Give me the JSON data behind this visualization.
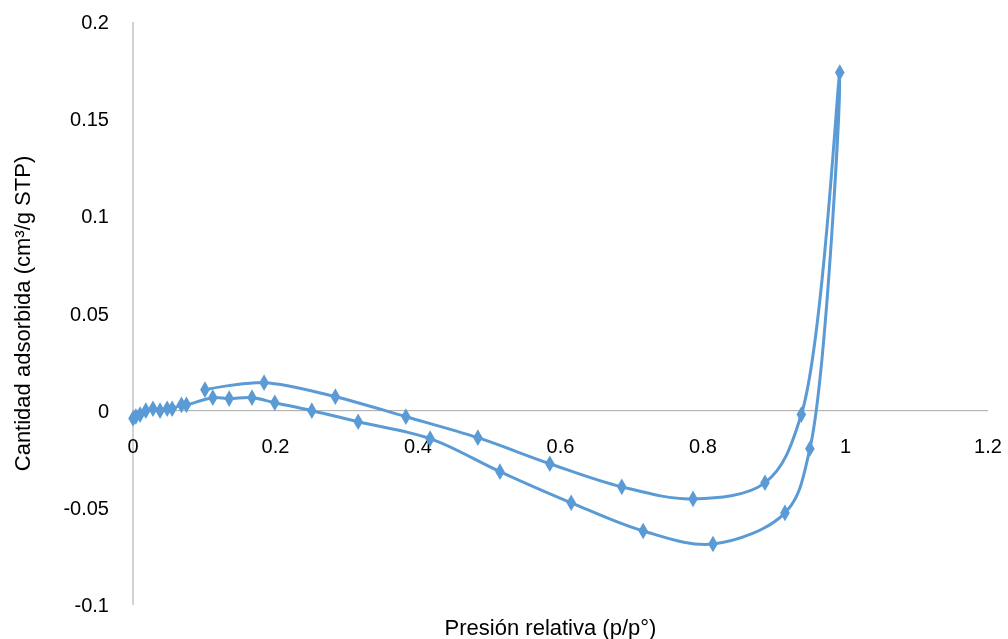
{
  "chart_data": {
    "type": "line",
    "xlabel": "Presión relativa (p/p°)",
    "ylabel": "Cantidad adsorbida (cm³/g STP)",
    "xlim": [
      0,
      1.2
    ],
    "ylim": [
      -0.1,
      0.2
    ],
    "xticks": [
      0,
      0.2,
      0.4,
      0.6,
      0.8,
      1,
      1.2
    ],
    "yticks": [
      -0.1,
      -0.05,
      0,
      0.05,
      0.1,
      0.15,
      0.2
    ],
    "grid": false,
    "marker": "diamond",
    "line_style": "solid",
    "series": [
      {
        "color": "#5b9bd5",
        "x": [
          0.0,
          0.004,
          0.01,
          0.018,
          0.028,
          0.038,
          0.048,
          0.055,
          0.068,
          0.075,
          0.112,
          0.135,
          0.167,
          0.199,
          0.251,
          0.316,
          0.417,
          0.515,
          0.615,
          0.716,
          0.814,
          0.915,
          0.95,
          0.992,
          0.938,
          0.887,
          0.786,
          0.686,
          0.585,
          0.484,
          0.383,
          0.284,
          0.184,
          0.101
        ],
        "values": [
          -0.004,
          -0.003,
          -0.002,
          0.0,
          0.001,
          0.0,
          0.001,
          0.001,
          0.003,
          0.003,
          0.0067,
          0.0062,
          0.0067,
          0.0041,
          0.0,
          -0.0057,
          -0.0144,
          -0.0314,
          -0.0474,
          -0.0619,
          -0.0686,
          -0.0526,
          -0.0196,
          0.174,
          -0.002,
          -0.0371,
          -0.0454,
          -0.0392,
          -0.0273,
          -0.0139,
          -0.0031,
          0.0072,
          0.0144,
          0.0108
        ]
      }
    ]
  }
}
